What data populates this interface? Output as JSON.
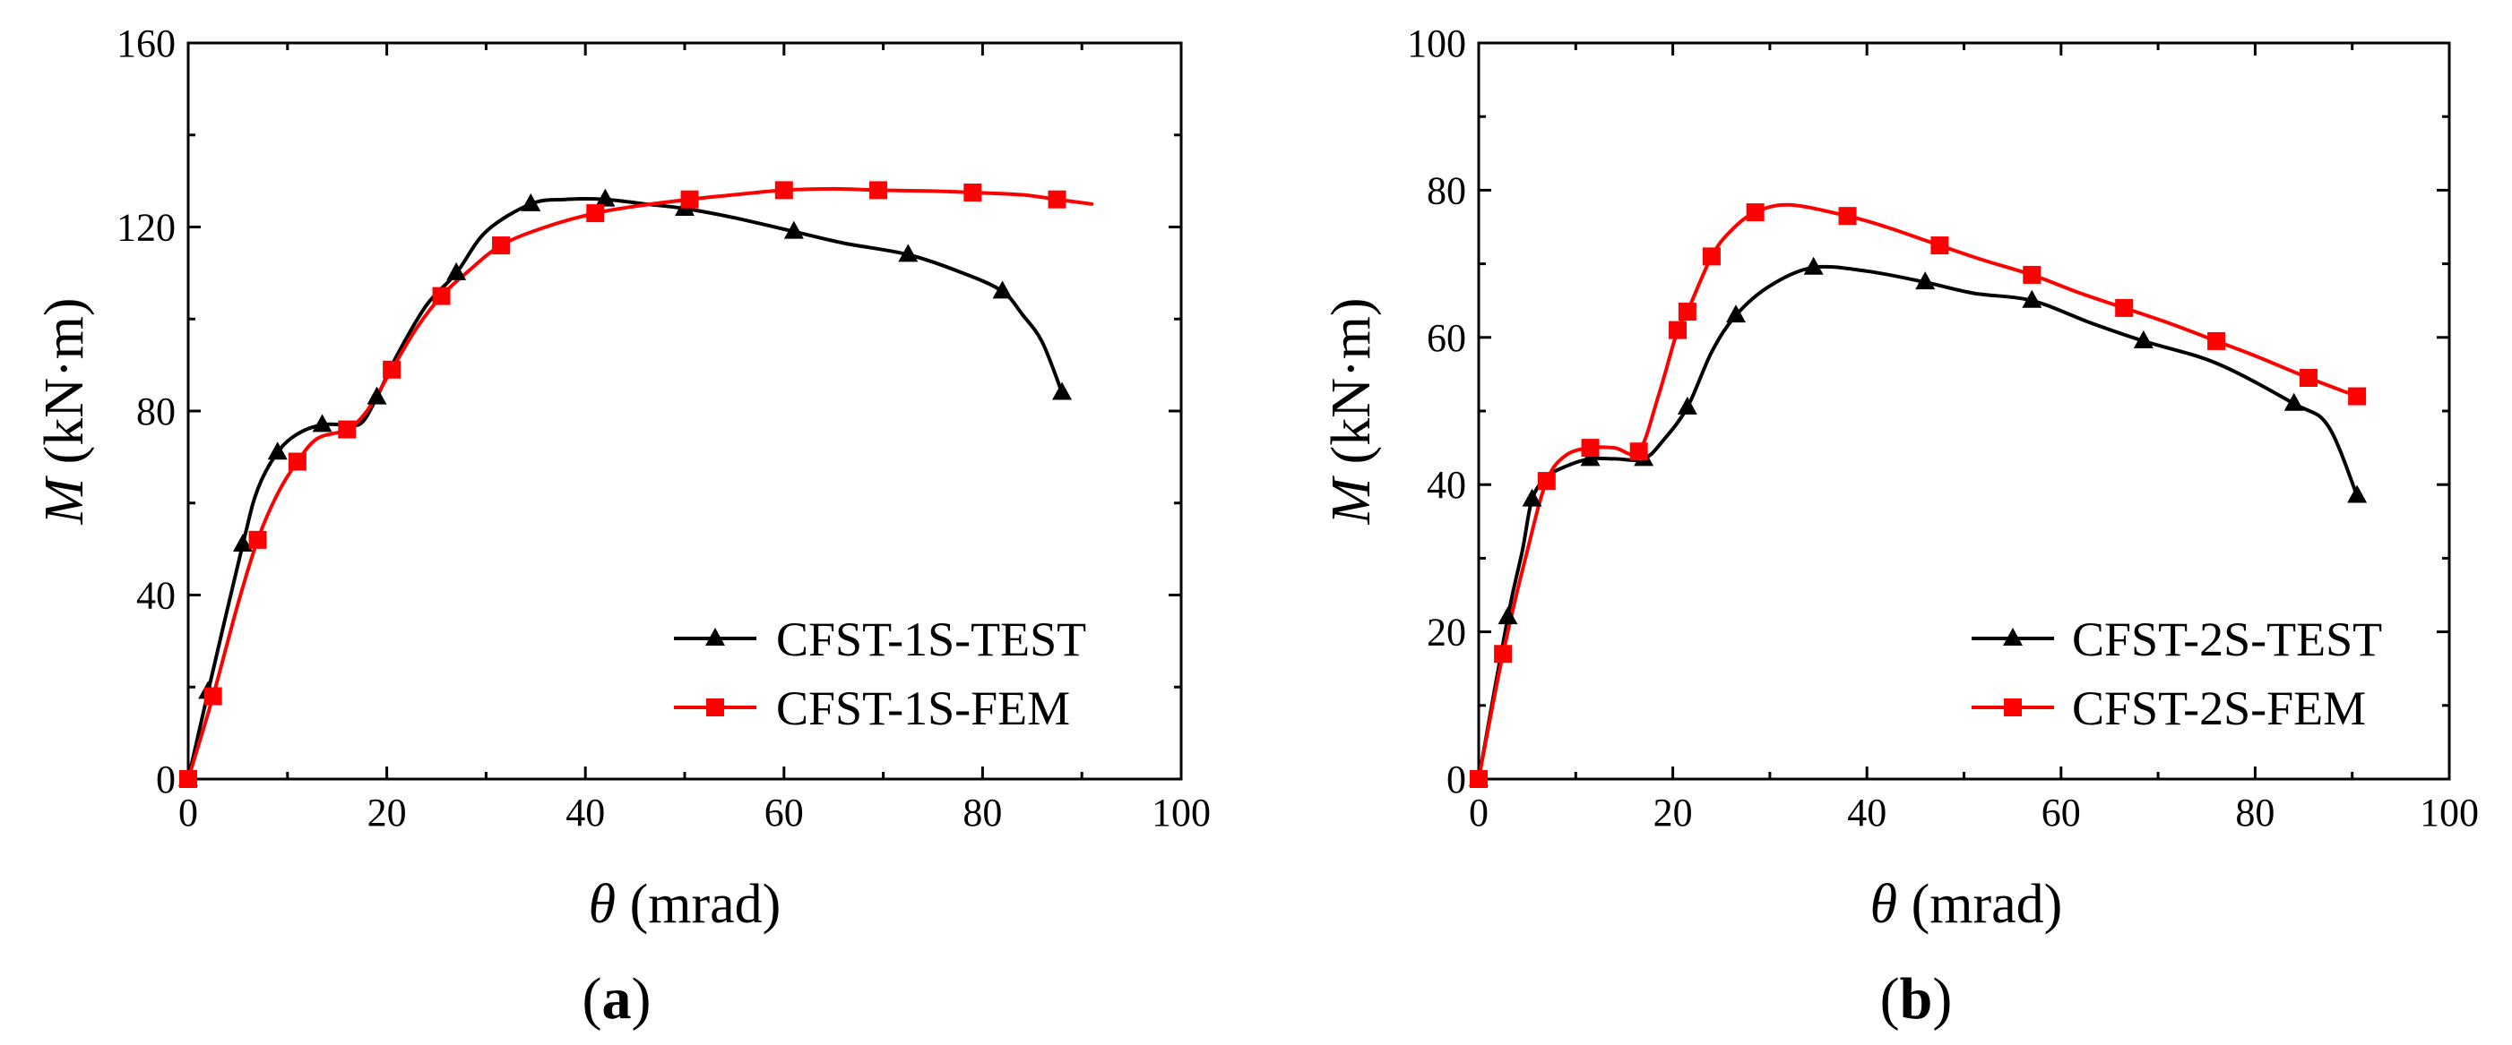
{
  "chart_data": [
    {
      "type": "line",
      "panel_label": "a",
      "xlabel_symbol": "θ",
      "xlabel_unit": " (mrad)",
      "ylabel_symbol": "M",
      "ylabel_unit": " (kN·m)",
      "xlim": [
        0,
        100
      ],
      "ylim": [
        0,
        160
      ],
      "xticks": [
        0,
        20,
        40,
        60,
        80,
        100
      ],
      "yticks": [
        0,
        40,
        80,
        120,
        160
      ],
      "legend_position": "bottom-right",
      "series": [
        {
          "name": "CFST-1S-TEST",
          "color": "#000000",
          "marker": "triangle",
          "x": [
            0,
            2,
            5.5,
            9,
            13.5,
            19,
            27,
            34.5,
            42,
            50,
            61,
            72.5,
            82,
            88
          ],
          "y": [
            0,
            19,
            51,
            71,
            77,
            83,
            110,
            125,
            126,
            124,
            119,
            114,
            106,
            84
          ],
          "curve_x": [
            0,
            2,
            5.5,
            7,
            9,
            11,
            13.5,
            16,
            17.5,
            19,
            21,
            24,
            27,
            30,
            34.5,
            38,
            42,
            46,
            50,
            55,
            61,
            66,
            72.5,
            78,
            82,
            84,
            86,
            88
          ],
          "curve_y": [
            0,
            19,
            51,
            63,
            71,
            75,
            77,
            77,
            77.5,
            83,
            92,
            103,
            110,
            119,
            125,
            126,
            126,
            125,
            124,
            122,
            119,
            116.5,
            114,
            110,
            106,
            101,
            95,
            84
          ]
        },
        {
          "name": "CFST-1S-FEM",
          "color": "#ff0000",
          "marker": "square",
          "x": [
            0,
            2.5,
            7,
            11,
            16,
            20.5,
            25.5,
            31.5,
            41,
            50.5,
            60,
            69.5,
            79,
            87.5
          ],
          "y": [
            0,
            18,
            52,
            69,
            76,
            89,
            105,
            116,
            123,
            126,
            128,
            128,
            127.5,
            126
          ],
          "curve_x": [
            0,
            2.5,
            5,
            7,
            9,
            11,
            13,
            16,
            18,
            20.5,
            23,
            25.5,
            28,
            31.5,
            36,
            41,
            45,
            50.5,
            55,
            60,
            65,
            69.5,
            75,
            79,
            84,
            87.5,
            91
          ],
          "curve_y": [
            0,
            18,
            38,
            52,
            62,
            69,
            74,
            76,
            80,
            89,
            98,
            105,
            110,
            116,
            120,
            123,
            124.5,
            126,
            127,
            128,
            128.3,
            128,
            127.8,
            127.5,
            127,
            126,
            125
          ]
        }
      ]
    },
    {
      "type": "line",
      "panel_label": "b",
      "xlabel_symbol": "θ",
      "xlabel_unit": " (mrad)",
      "ylabel_symbol": "M",
      "ylabel_unit": " (kN·m)",
      "xlim": [
        0,
        100
      ],
      "ylim": [
        0,
        100
      ],
      "xticks": [
        0,
        20,
        40,
        60,
        80,
        100
      ],
      "yticks": [
        0,
        20,
        40,
        60,
        80,
        100
      ],
      "legend_position": "bottom-right",
      "series": [
        {
          "name": "CFST-2S-TEST",
          "color": "#000000",
          "marker": "triangle",
          "x": [
            0,
            3,
            5.5,
            11.5,
            17,
            21.5,
            26.5,
            34.5,
            46,
            57,
            68.5,
            84,
            90.5
          ],
          "y": [
            0,
            22,
            38,
            43.5,
            43.5,
            50.5,
            63,
            69.5,
            67.5,
            65,
            59.5,
            51,
            38.5
          ],
          "curve_x": [
            0,
            3,
            4.5,
            5.5,
            7,
            9,
            11.5,
            14,
            17,
            19,
            21.5,
            24,
            26.5,
            30,
            34.5,
            40,
            46,
            51,
            57,
            63,
            68.5,
            76,
            84,
            87.5,
            90.5
          ],
          "curve_y": [
            0,
            22,
            31,
            38,
            41,
            42.5,
            43.5,
            43.5,
            43.5,
            46,
            50.5,
            58,
            63,
            67,
            69.5,
            69,
            67.5,
            66,
            65,
            62,
            59.5,
            56.5,
            51,
            48,
            38.5
          ]
        },
        {
          "name": "CFST-2S-FEM",
          "color": "#ff0000",
          "marker": "square",
          "x": [
            0,
            2.5,
            7,
            11.5,
            16.5,
            20.5,
            21.5,
            24,
            28.5,
            38,
            47.5,
            57,
            66.5,
            76,
            85.5,
            90.5
          ],
          "y": [
            0,
            17,
            40.5,
            45,
            44.5,
            61,
            63.5,
            71,
            77,
            76.5,
            72.5,
            68.5,
            64,
            59.5,
            54.5,
            52
          ],
          "curve_x": [
            0,
            2.5,
            5,
            7,
            9,
            11.5,
            14,
            16.5,
            18.5,
            20.5,
            21.5,
            24,
            26,
            28.5,
            32,
            38,
            42,
            47.5,
            52,
            57,
            62,
            66.5,
            71,
            76,
            80,
            85.5,
            90.5
          ],
          "curve_y": [
            0,
            17,
            31,
            40.5,
            44,
            45,
            45,
            44.5,
            52,
            61,
            63.5,
            71,
            74.5,
            77,
            78,
            76.5,
            75,
            72.5,
            70.5,
            68.5,
            66,
            64,
            62,
            59.5,
            57.5,
            54.5,
            52
          ]
        }
      ]
    }
  ]
}
